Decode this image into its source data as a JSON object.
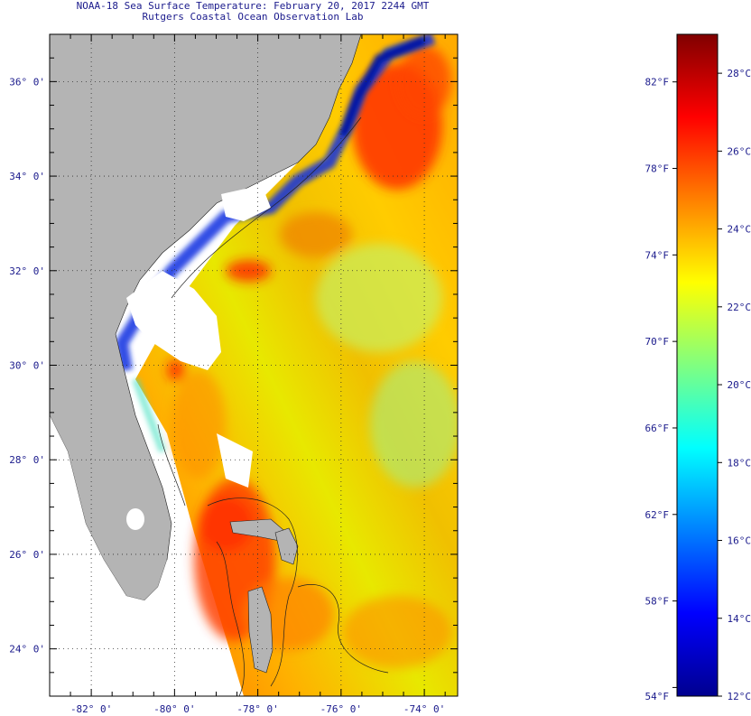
{
  "header": {
    "title": "NOAA-18 Sea Surface Temperature:  February 20, 2017 2244 GMT",
    "subtitle": "Rutgers Coastal Ocean Observation Lab"
  },
  "map": {
    "lat_labels": [
      "36° 0'",
      "34° 0'",
      "32° 0'",
      "30° 0'",
      "28° 0'",
      "26° 0'",
      "24° 0'"
    ],
    "lon_labels": [
      "-82° 0'",
      "-80° 0'",
      "-78° 0'",
      "-76° 0'",
      "-74° 0'"
    ],
    "lat_range": [
      23,
      37
    ],
    "lon_range": [
      -83,
      -73.2
    ],
    "land_color": "#b4b4b4",
    "cloud_color": "#ffffff"
  },
  "colorbar": {
    "min_c": 12,
    "max_c": 29,
    "fahrenheit_labels": [
      "82°F",
      "78°F",
      "74°F",
      "70°F",
      "66°F",
      "62°F",
      "58°F",
      "54°F"
    ],
    "celsius_labels": [
      "28°C",
      "26°C",
      "24°C",
      "22°C",
      "20°C",
      "18°C",
      "16°C",
      "14°C",
      "12°C"
    ],
    "colors": [
      "#00008f",
      "#0000ff",
      "#0080ff",
      "#00ffff",
      "#80ff80",
      "#ffff00",
      "#ff8000",
      "#ff0000",
      "#800000"
    ]
  }
}
